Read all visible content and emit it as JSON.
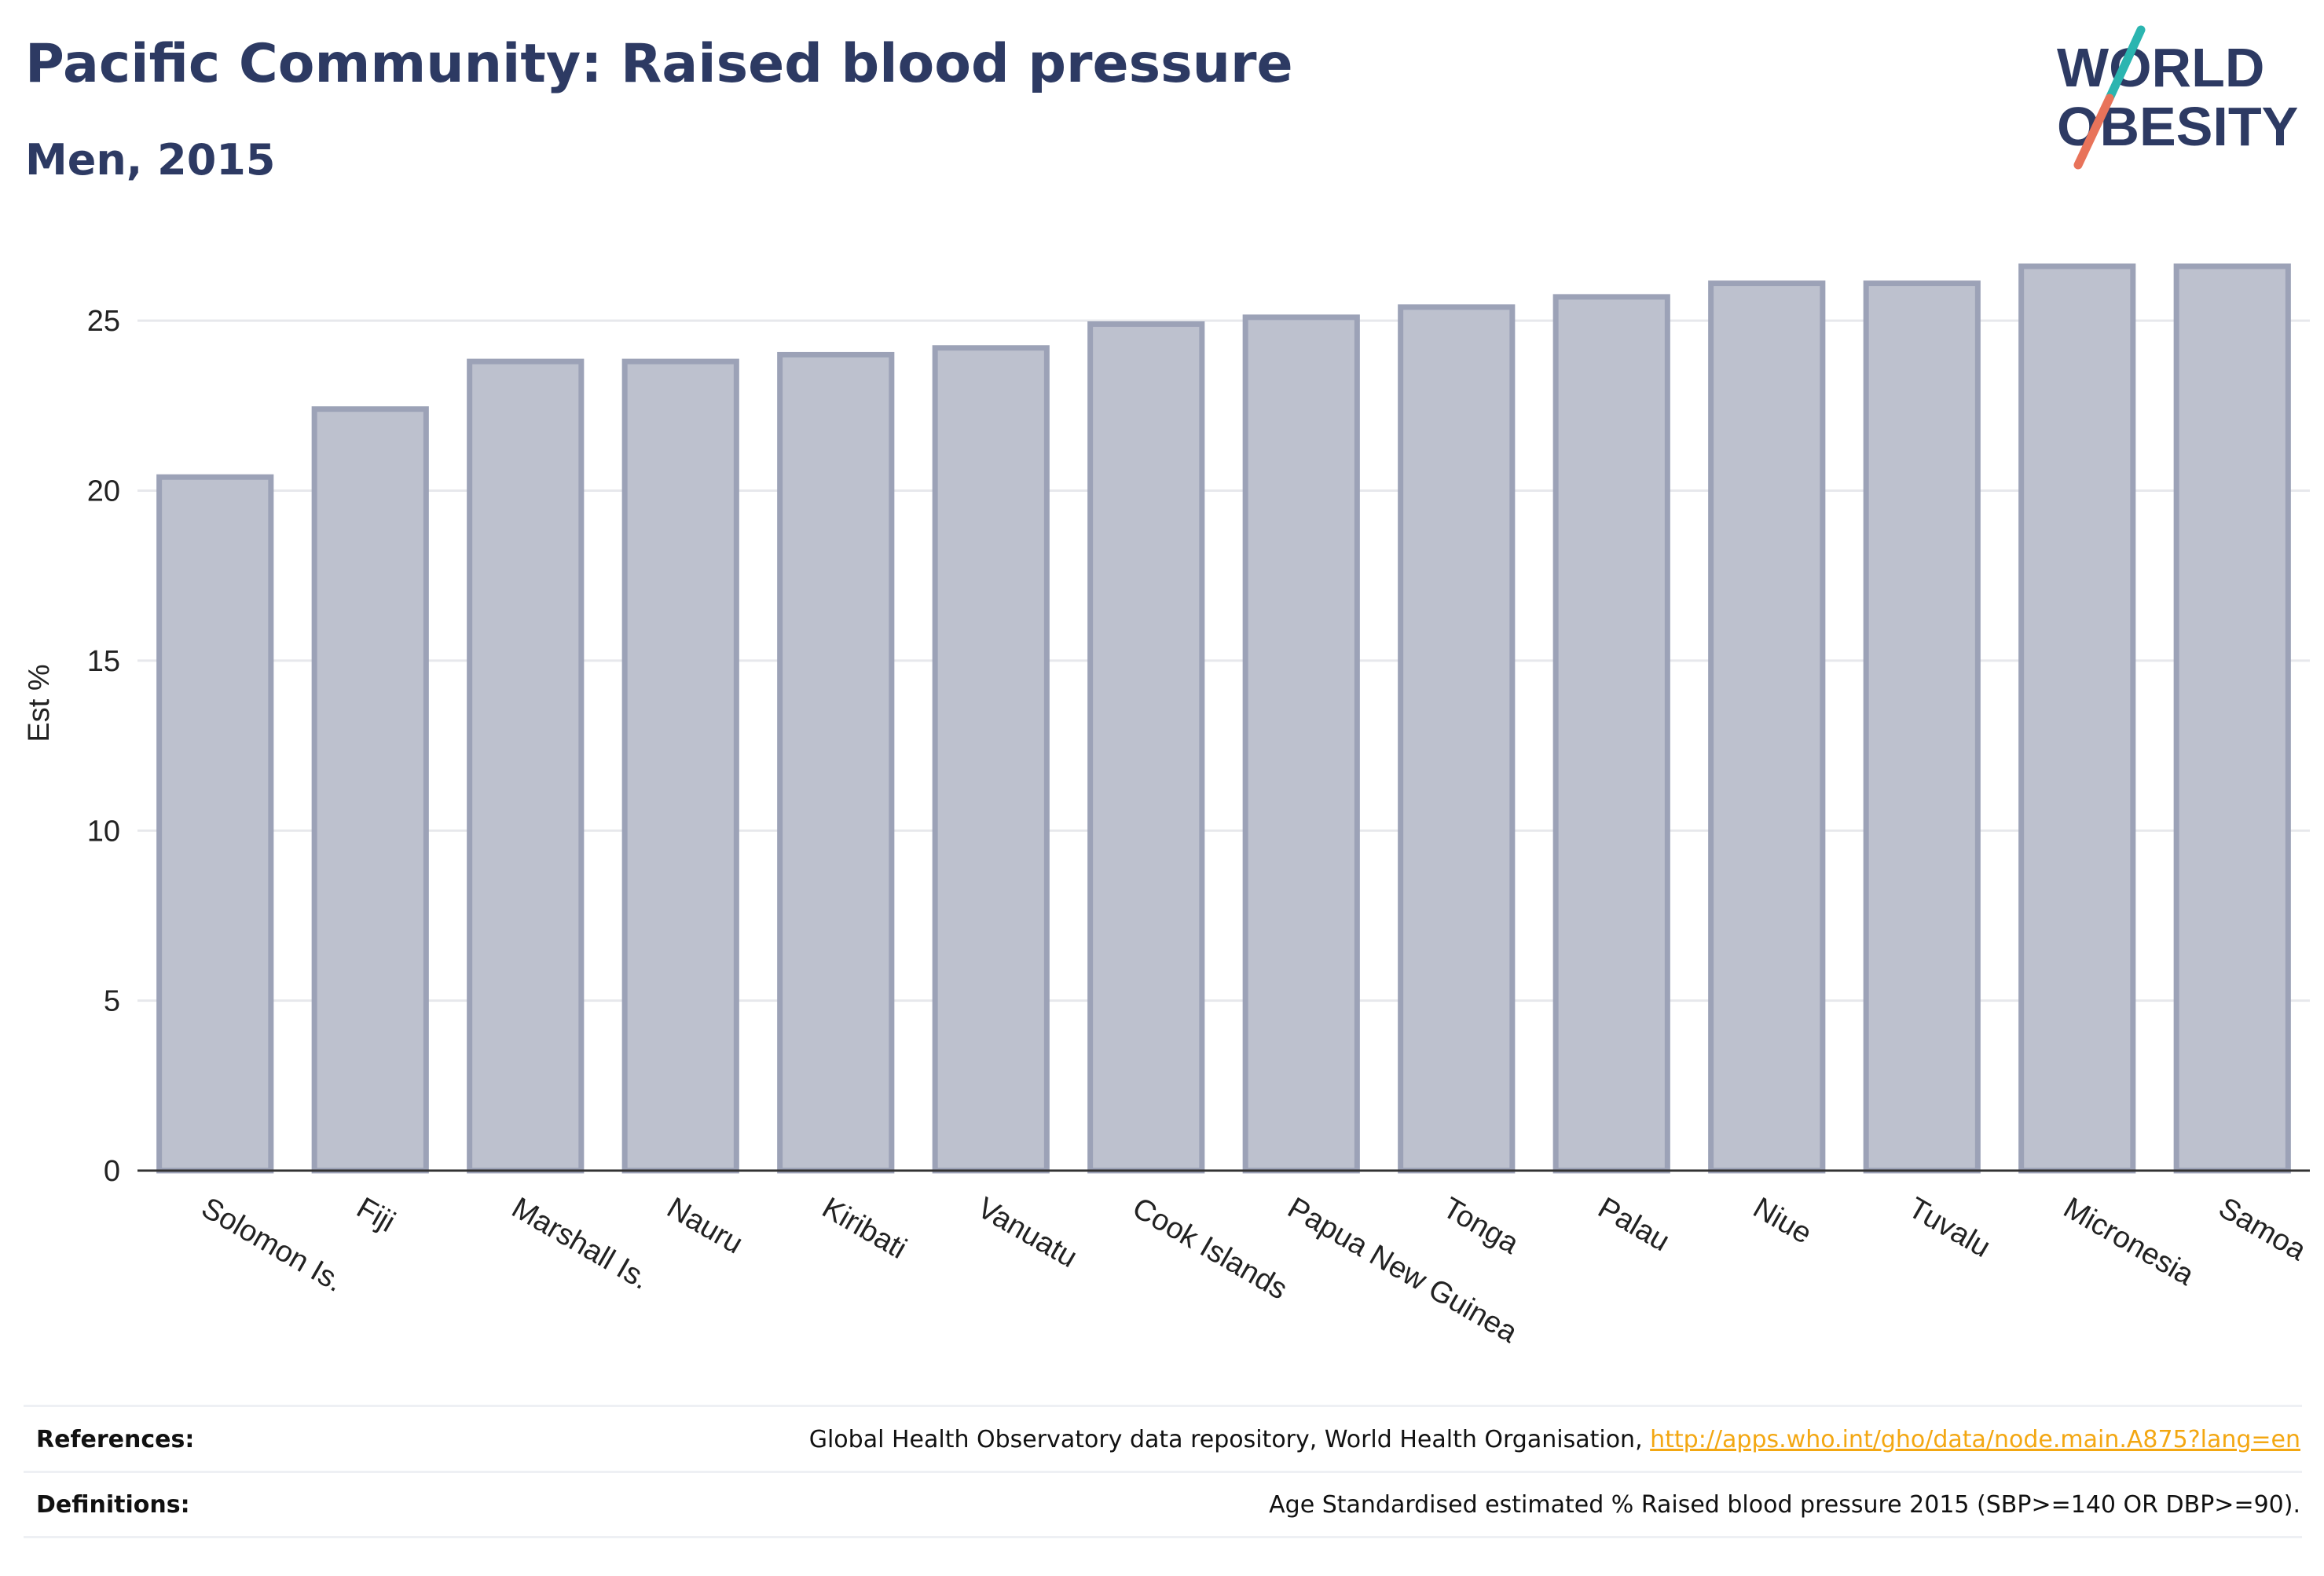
{
  "header": {
    "title": "Pacific Community: Raised blood pressure",
    "subtitle": "Men, 2015"
  },
  "logo": {
    "line1": "WORLD",
    "line2": "OBESITY",
    "slash_color_top": "#2bb5b0",
    "slash_color_bottom": "#e8735a",
    "text_color": "#2d3a63"
  },
  "chart_data": {
    "type": "bar",
    "categories": [
      "Solomon Is.",
      "Fiji",
      "Marshall Is.",
      "Nauru",
      "Kiribati",
      "Vanuatu",
      "Cook Islands",
      "Papua New Guinea",
      "Tonga",
      "Palau",
      "Niue",
      "Tuvalu",
      "Micronesia",
      "Samoa"
    ],
    "values": [
      20.4,
      22.4,
      23.8,
      23.8,
      24.0,
      24.2,
      24.9,
      25.1,
      25.4,
      25.7,
      26.1,
      26.1,
      26.6,
      26.6
    ],
    "xlabel": "",
    "ylabel": "Est %",
    "ylim": [
      0,
      27.5
    ],
    "yticks": [
      0,
      5,
      10,
      15,
      20,
      25
    ],
    "grid": true,
    "bar_color": "#bdc1ce",
    "bar_edge_color": "#9ca2b7"
  },
  "footer": {
    "references_label": "References:",
    "references_text": "Global Health Observatory data repository, World Health Organisation, ",
    "references_link": "http://apps.who.int/gho/data/node.main.A875?lang=en",
    "definitions_label": "Definitions:",
    "definitions_text": "Age Standardised estimated % Raised blood pressure 2015 (SBP>=140 OR DBP>=90)."
  }
}
